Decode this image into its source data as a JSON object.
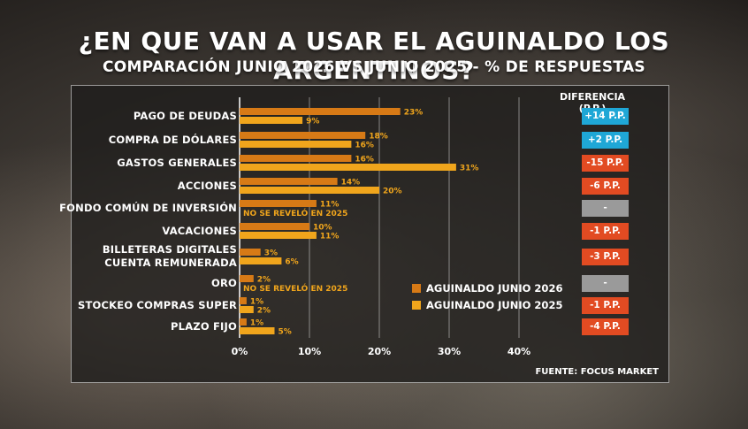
{
  "header": {
    "title": "¿EN QUE VAN A USAR EL AGUINALDO LOS ARGENTINOS?",
    "subtitle": "COMPARACIÓN JUNIO 2026 VS JUNIO 2025 - % DE RESPUESTAS"
  },
  "colors": {
    "series_2026": "#d77a16",
    "series_2025": "#f0a51c",
    "positive": "#1fa7d6",
    "negative": "#e24b22",
    "neutral": "#9a9a9a"
  },
  "chart_data": {
    "type": "bar",
    "orientation": "horizontal",
    "categories": [
      "PAGO DE DEUDAS",
      "COMPRA DE DÓLARES",
      "GASTOS GENERALES",
      "ACCIONES",
      "FONDO COMÚN DE INVERSIÓN",
      "VACACIONES",
      "BILLETERAS DIGITALES CUENTA REMUNERADA",
      "ORO",
      "STOCKEO COMPRAS SUPER",
      "PLAZO FIJO"
    ],
    "category_lines": [
      [
        "PAGO DE DEUDAS"
      ],
      [
        "COMPRA DE DÓLARES"
      ],
      [
        "GASTOS GENERALES"
      ],
      [
        "ACCIONES"
      ],
      [
        "FONDO COMÚN DE INVERSIÓN"
      ],
      [
        "VACACIONES"
      ],
      [
        "BILLETERAS DIGITALES",
        "CUENTA REMUNERADA"
      ],
      [
        "ORO"
      ],
      [
        "STOCKEO COMPRAS SUPER"
      ],
      [
        "PLAZO FIJO"
      ]
    ],
    "series": [
      {
        "name": "AGUINALDO JUNIO 2026",
        "values": [
          23,
          18,
          16,
          14,
          11,
          10,
          3,
          2,
          1,
          1
        ]
      },
      {
        "name": "AGUINALDO JUNIO 2025",
        "values": [
          9,
          16,
          31,
          20,
          null,
          11,
          6,
          null,
          2,
          5
        ]
      }
    ],
    "data_labels": {
      "2026": [
        "23%",
        "18%",
        "16%",
        "14%",
        "11%",
        "10%",
        "3%",
        "2%",
        "1%",
        "1%"
      ],
      "2025": [
        "9%",
        "16%",
        "31%",
        "20%",
        "NO SE REVELÓ EN 2025",
        "11%",
        "6%",
        "NO SE REVELÓ EN 2025",
        "2%",
        "5%"
      ]
    },
    "x_ticks": [
      0,
      10,
      20,
      30,
      40
    ],
    "x_tick_labels": [
      "0%",
      "10%",
      "20%",
      "30%",
      "40%"
    ],
    "xlim": [
      0,
      40
    ],
    "grid": true,
    "legend_position": "lower-right"
  },
  "difference": {
    "header": "DIFERENCIA (P.P.)",
    "values": [
      {
        "label": "+14 P.P.",
        "status": "positive"
      },
      {
        "label": "+2 P.P.",
        "status": "positive"
      },
      {
        "label": "-15 P.P.",
        "status": "negative"
      },
      {
        "label": "-6 P.P.",
        "status": "negative"
      },
      {
        "label": "-",
        "status": "neutral"
      },
      {
        "label": "-1 P.P.",
        "status": "negative"
      },
      {
        "label": "-3 P.P.",
        "status": "negative"
      },
      {
        "label": "-",
        "status": "neutral"
      },
      {
        "label": "-1 P.P.",
        "status": "negative"
      },
      {
        "label": "-4 P.P.",
        "status": "negative"
      }
    ]
  },
  "footer": {
    "source": "FUENTE: FOCUS MARKET"
  }
}
